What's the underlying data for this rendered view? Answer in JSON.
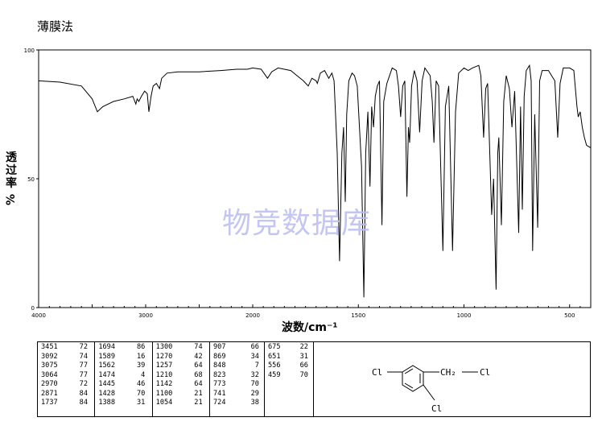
{
  "method_label": "薄膜法",
  "watermark": "物竞数据库",
  "chart_data": {
    "type": "line",
    "title": "",
    "xlabel": "波数/cm⁻¹",
    "ylabel": "透过率",
    "ylabel_unit": "%",
    "xlim": [
      4000,
      400
    ],
    "ylim": [
      0,
      100
    ],
    "x_ticks": [
      "4000",
      "3000",
      "2000",
      "1500",
      "1000",
      "500"
    ],
    "y_ticks": [
      "0",
      "50",
      "100"
    ],
    "series": [
      {
        "points": [
          [
            4000,
            88
          ],
          [
            3800,
            87.5
          ],
          [
            3600,
            86
          ],
          [
            3500,
            81
          ],
          [
            3451,
            76
          ],
          [
            3400,
            78
          ],
          [
            3300,
            80
          ],
          [
            3200,
            81
          ],
          [
            3120,
            82
          ],
          [
            3092,
            79
          ],
          [
            3080,
            81
          ],
          [
            3064,
            80
          ],
          [
            3040,
            82
          ],
          [
            3010,
            84
          ],
          [
            2985,
            83
          ],
          [
            2970,
            76
          ],
          [
            2950,
            82
          ],
          [
            2930,
            86
          ],
          [
            2900,
            87
          ],
          [
            2871,
            85
          ],
          [
            2850,
            89
          ],
          [
            2800,
            91
          ],
          [
            2700,
            91.5
          ],
          [
            2500,
            91.5
          ],
          [
            2300,
            92
          ],
          [
            2150,
            92.5
          ],
          [
            2050,
            92.5
          ],
          [
            2000,
            93
          ],
          [
            1960,
            92.5
          ],
          [
            1930,
            89
          ],
          [
            1910,
            91.5
          ],
          [
            1880,
            93
          ],
          [
            1820,
            92
          ],
          [
            1790,
            90
          ],
          [
            1760,
            88
          ],
          [
            1737,
            86
          ],
          [
            1720,
            89
          ],
          [
            1700,
            88
          ],
          [
            1694,
            87
          ],
          [
            1680,
            91
          ],
          [
            1660,
            92
          ],
          [
            1640,
            89
          ],
          [
            1625,
            91
          ],
          [
            1615,
            88
          ],
          [
            1600,
            60
          ],
          [
            1589,
            18
          ],
          [
            1578,
            60
          ],
          [
            1570,
            70
          ],
          [
            1562,
            41
          ],
          [
            1555,
            75
          ],
          [
            1545,
            88
          ],
          [
            1530,
            91
          ],
          [
            1518,
            90
          ],
          [
            1505,
            86
          ],
          [
            1485,
            55
          ],
          [
            1474,
            4
          ],
          [
            1465,
            60
          ],
          [
            1455,
            76
          ],
          [
            1445,
            47
          ],
          [
            1437,
            78
          ],
          [
            1428,
            70
          ],
          [
            1420,
            82
          ],
          [
            1410,
            86
          ],
          [
            1400,
            88
          ],
          [
            1388,
            32
          ],
          [
            1380,
            80
          ],
          [
            1365,
            87
          ],
          [
            1340,
            93
          ],
          [
            1320,
            92
          ],
          [
            1310,
            86
          ],
          [
            1300,
            74
          ],
          [
            1290,
            86
          ],
          [
            1280,
            88
          ],
          [
            1270,
            43
          ],
          [
            1263,
            70
          ],
          [
            1257,
            64
          ],
          [
            1248,
            86
          ],
          [
            1235,
            92
          ],
          [
            1222,
            88
          ],
          [
            1210,
            68
          ],
          [
            1198,
            88
          ],
          [
            1185,
            93
          ],
          [
            1160,
            90
          ],
          [
            1150,
            80
          ],
          [
            1142,
            64
          ],
          [
            1132,
            88
          ],
          [
            1120,
            86
          ],
          [
            1100,
            22
          ],
          [
            1088,
            78
          ],
          [
            1072,
            86
          ],
          [
            1054,
            22
          ],
          [
            1040,
            76
          ],
          [
            1025,
            91
          ],
          [
            1000,
            93
          ],
          [
            980,
            92
          ],
          [
            960,
            93
          ],
          [
            930,
            94
          ],
          [
            920,
            90
          ],
          [
            907,
            66
          ],
          [
            897,
            85
          ],
          [
            888,
            87
          ],
          [
            869,
            36
          ],
          [
            860,
            50
          ],
          [
            848,
            7
          ],
          [
            840,
            60
          ],
          [
            835,
            66
          ],
          [
            823,
            32
          ],
          [
            812,
            80
          ],
          [
            800,
            90
          ],
          [
            785,
            85
          ],
          [
            773,
            70
          ],
          [
            760,
            84
          ],
          [
            741,
            29
          ],
          [
            732,
            78
          ],
          [
            724,
            38
          ],
          [
            715,
            82
          ],
          [
            705,
            92
          ],
          [
            690,
            94
          ],
          [
            682,
            88
          ],
          [
            675,
            22
          ],
          [
            665,
            75
          ],
          [
            651,
            31
          ],
          [
            642,
            88
          ],
          [
            630,
            92
          ],
          [
            600,
            92
          ],
          [
            585,
            90
          ],
          [
            570,
            88
          ],
          [
            556,
            66
          ],
          [
            545,
            87
          ],
          [
            530,
            93
          ],
          [
            500,
            93
          ],
          [
            480,
            92
          ],
          [
            465,
            78
          ],
          [
            459,
            74
          ],
          [
            450,
            76
          ],
          [
            440,
            70
          ],
          [
            430,
            66
          ],
          [
            420,
            63
          ],
          [
            400,
            62
          ]
        ]
      }
    ]
  },
  "peak_table": [
    [
      [
        "3451",
        "72"
      ],
      [
        "3092",
        "74"
      ],
      [
        "3075",
        "77"
      ],
      [
        "3064",
        "77"
      ],
      [
        "2970",
        "72"
      ],
      [
        "2871",
        "84"
      ],
      [
        "1737",
        "84"
      ]
    ],
    [
      [
        "1694",
        "86"
      ],
      [
        "1589",
        "16"
      ],
      [
        "1562",
        "39"
      ],
      [
        "1474",
        "4"
      ],
      [
        "1445",
        "46"
      ],
      [
        "1428",
        "70"
      ],
      [
        "1388",
        "31"
      ]
    ],
    [
      [
        "1300",
        "74"
      ],
      [
        "1270",
        "42"
      ],
      [
        "1257",
        "64"
      ],
      [
        "1210",
        "68"
      ],
      [
        "1142",
        "64"
      ],
      [
        "1100",
        "21"
      ],
      [
        "1054",
        "21"
      ]
    ],
    [
      [
        "907",
        "66"
      ],
      [
        "869",
        "34"
      ],
      [
        "848",
        "7"
      ],
      [
        "823",
        "32"
      ],
      [
        "773",
        "70"
      ],
      [
        "741",
        "29"
      ],
      [
        "724",
        "38"
      ]
    ],
    [
      [
        "675",
        "22"
      ],
      [
        "651",
        "31"
      ],
      [
        "556",
        "66"
      ],
      [
        "459",
        "70"
      ]
    ]
  ],
  "structure": {
    "labels": [
      "Cl",
      "CH₂",
      "Cl",
      "Cl"
    ]
  }
}
